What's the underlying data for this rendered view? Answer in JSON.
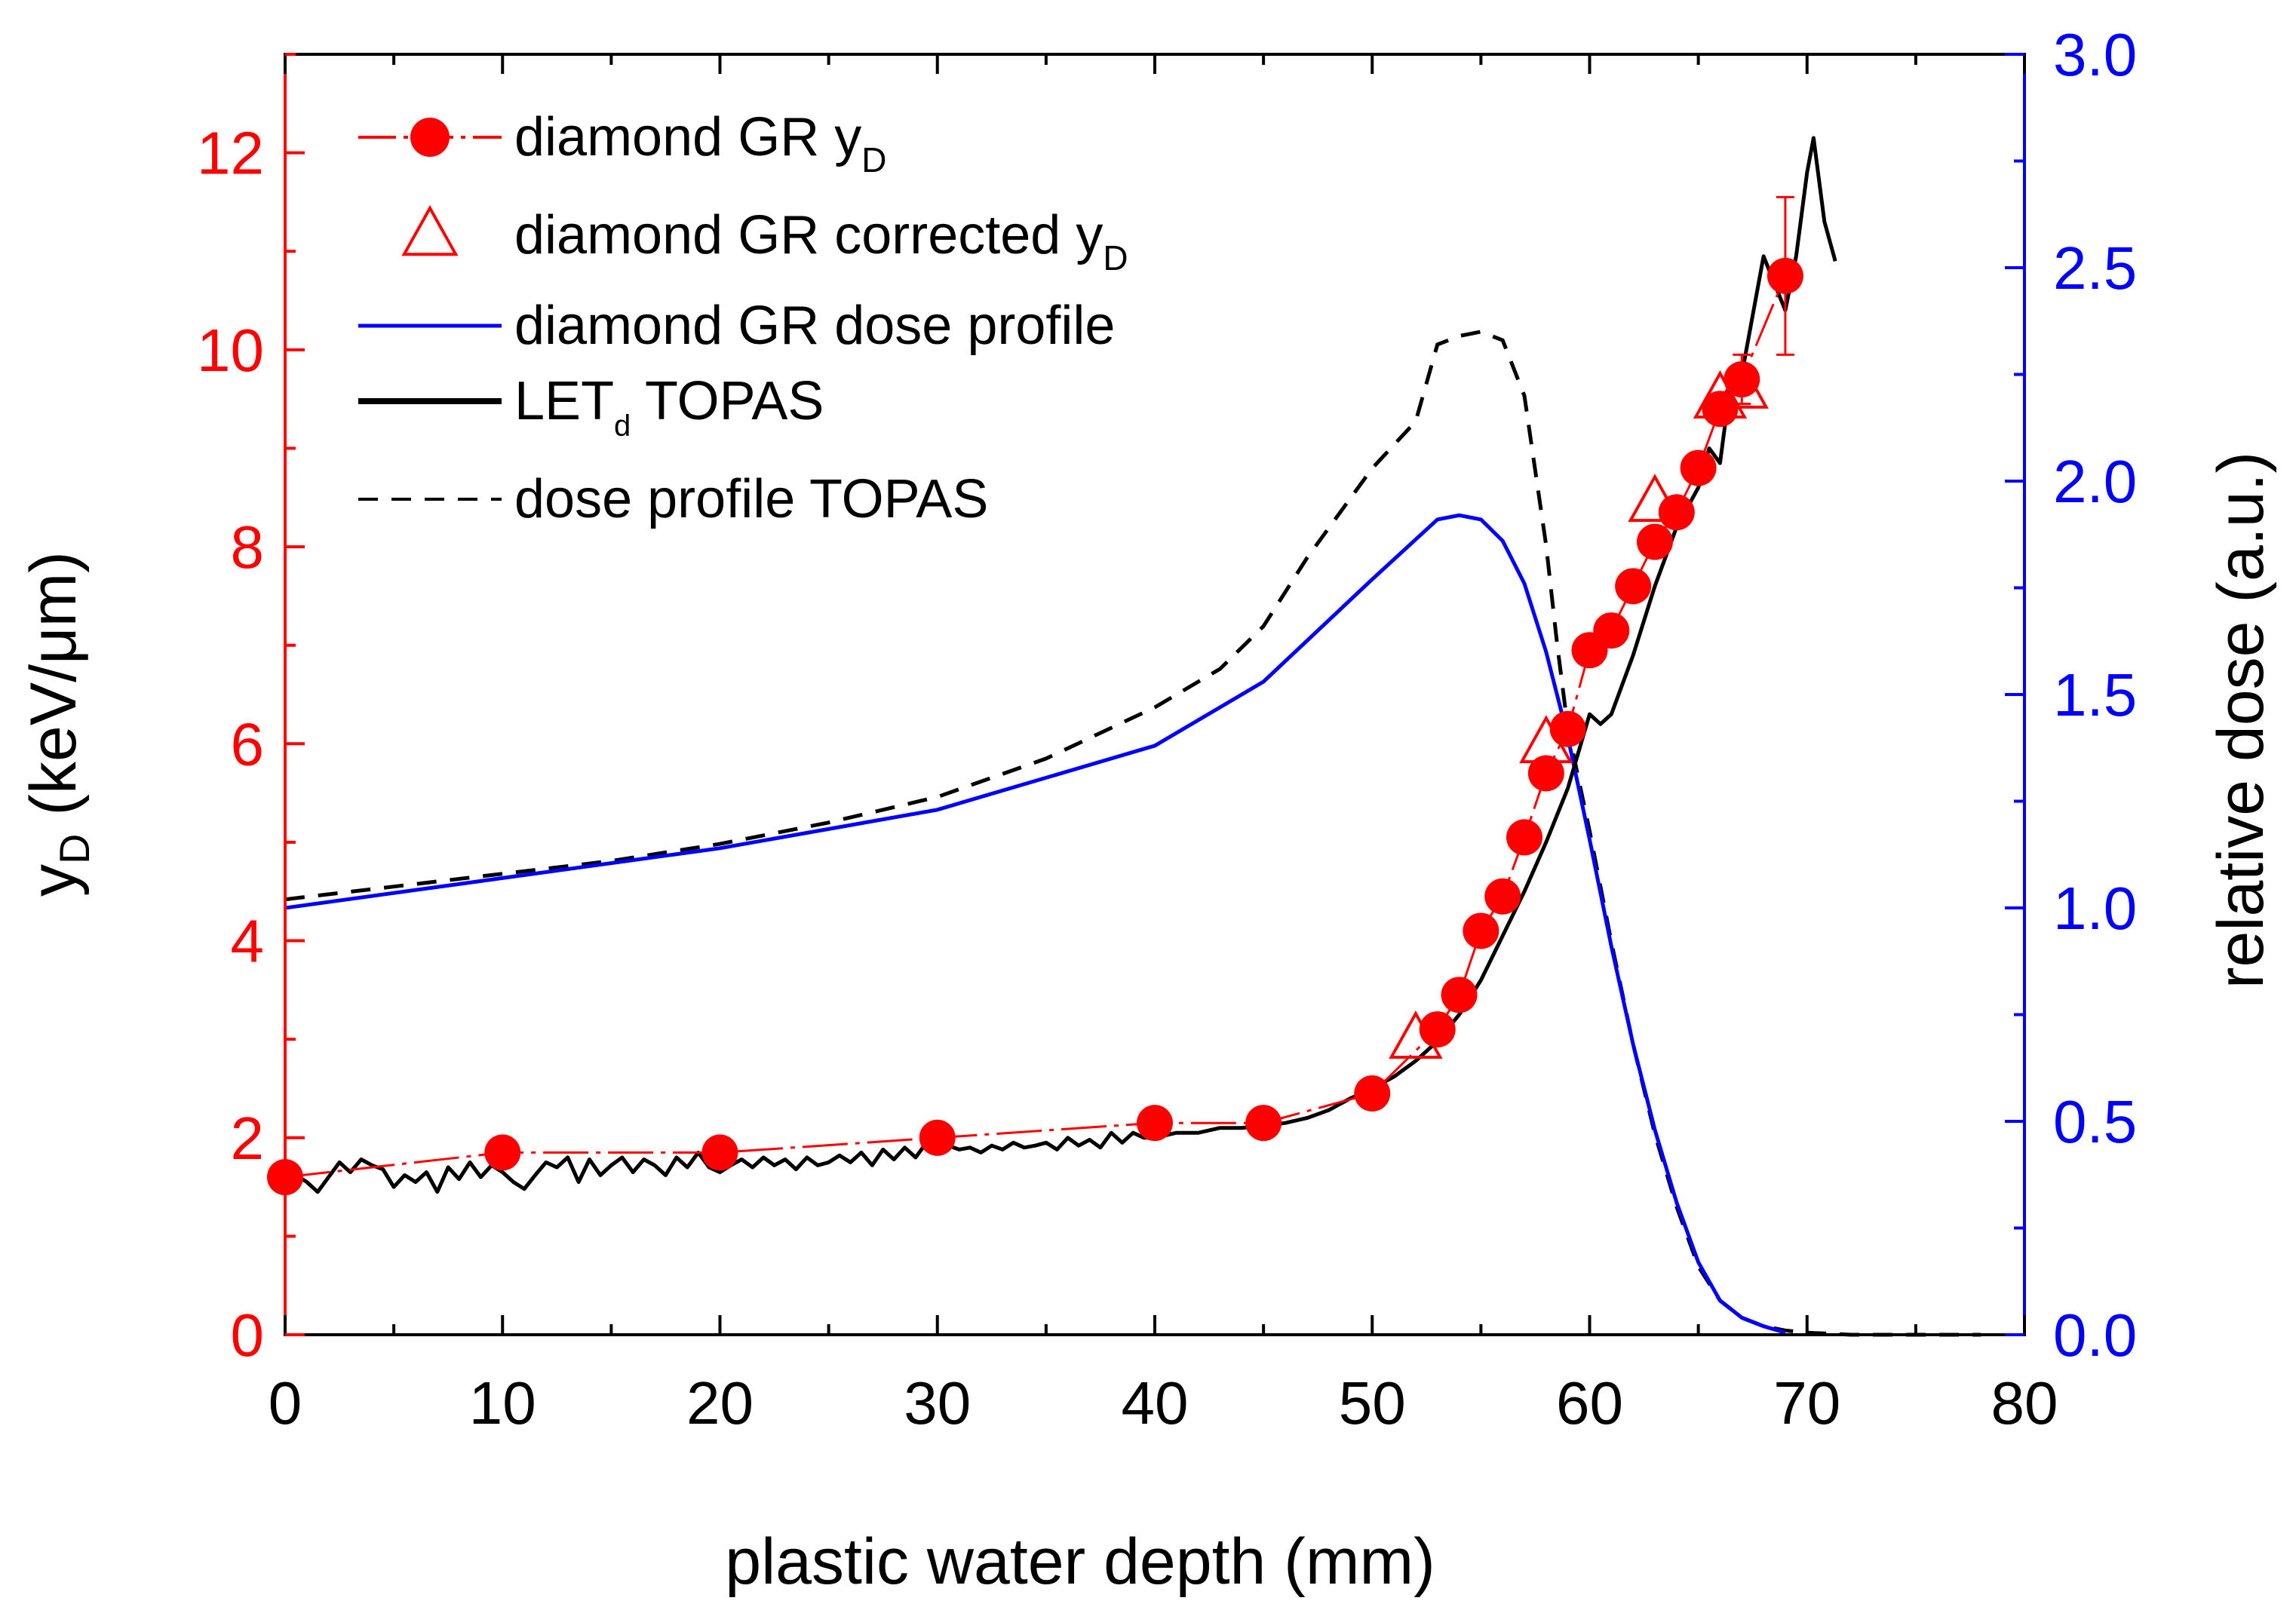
{
  "chart_data": {
    "type": "line",
    "x_axis": {
      "label": "plastic water depth (mm)",
      "range": [
        0,
        80
      ],
      "ticks": [
        0,
        10,
        20,
        30,
        40,
        50,
        60,
        70,
        80
      ]
    },
    "y_left": {
      "label_main": "y",
      "label_sub": "D",
      "label_rest": " (keV/μm)",
      "range": [
        0,
        13
      ],
      "ticks": [
        0,
        2,
        4,
        6,
        8,
        10,
        12
      ],
      "color": "#ff0000"
    },
    "y_right": {
      "label": "relative dose (a.u.)",
      "range": [
        0,
        3.0
      ],
      "ticks": [
        "0.0",
        "0.5",
        "1.0",
        "1.5",
        "2.0",
        "2.5",
        "3.0"
      ],
      "color": "#0000ff"
    },
    "legend": [
      {
        "key": "diamond",
        "pre": "diamond GR y",
        "sub": "D",
        "post": ""
      },
      {
        "key": "corrected",
        "pre": "diamond GR corrected y",
        "sub": "D",
        "post": ""
      },
      {
        "key": "doseprofile",
        "pre": "diamond GR dose profile",
        "sub": "",
        "post": ""
      },
      {
        "key": "let",
        "pre": "LET",
        "sub": "d",
        "post": " TOPAS"
      },
      {
        "key": "topasdose",
        "pre": "dose profile TOPAS",
        "sub": "",
        "post": ""
      }
    ],
    "series": {
      "diamond_yD": {
        "name": "diamond GR yD",
        "axis": "left",
        "color": "#ff0000",
        "x": [
          0,
          10,
          20,
          30,
          40,
          45,
          50,
          53,
          54,
          55,
          56,
          57,
          58,
          59,
          60,
          61,
          62,
          63,
          64,
          65,
          66,
          67,
          69
        ],
        "y": [
          1.6,
          1.85,
          1.85,
          2.0,
          2.15,
          2.15,
          2.45,
          3.1,
          3.45,
          4.1,
          4.45,
          5.05,
          5.7,
          6.15,
          6.95,
          7.15,
          7.6,
          8.05,
          8.35,
          8.8,
          9.4,
          9.7,
          10.75
        ],
        "error_x": [
          69,
          67
        ],
        "error_hi": [
          11.55,
          9.95
        ],
        "error_lo": [
          9.95,
          9.45
        ]
      },
      "diamond_corrected_yD": {
        "name": "diamond GR corrected yD",
        "axis": "left",
        "color": "#ff0000",
        "x": [
          52,
          58,
          63,
          66,
          67
        ],
        "y": [
          3.0,
          6.0,
          8.45,
          9.5,
          9.6
        ]
      },
      "diamond_dose_profile": {
        "name": "diamond GR dose profile",
        "axis": "right",
        "color": "#0000ff",
        "x": [
          0,
          10,
          20,
          30,
          40,
          45,
          50,
          53,
          54,
          55,
          56,
          57,
          58,
          59,
          60,
          61,
          62,
          63,
          64,
          65,
          66,
          67,
          68,
          69
        ],
        "y": [
          1.0,
          1.07,
          1.14,
          1.23,
          1.38,
          1.53,
          1.77,
          1.91,
          1.92,
          1.91,
          1.86,
          1.76,
          1.6,
          1.4,
          1.16,
          0.91,
          0.68,
          0.48,
          0.31,
          0.17,
          0.08,
          0.04,
          0.02,
          0.005
        ]
      },
      "let_d_topas": {
        "name": "LETd TOPAS",
        "axis": "left",
        "color": "#000000",
        "x": [
          0,
          0.5,
          1,
          1.5,
          2,
          2.5,
          3,
          3.5,
          4,
          4.5,
          5,
          5.5,
          6,
          6.5,
          7,
          7.5,
          8,
          8.5,
          9,
          9.5,
          10,
          10.5,
          11,
          11.5,
          12,
          12.5,
          13,
          13.5,
          14,
          14.5,
          15,
          15.5,
          16,
          16.5,
          17,
          17.5,
          18,
          18.5,
          19,
          19.5,
          20,
          20.5,
          21,
          21.5,
          22,
          22.5,
          23,
          23.5,
          24,
          24.5,
          25,
          25.5,
          26,
          26.5,
          27,
          27.5,
          28,
          28.5,
          29,
          29.5,
          30,
          30.5,
          31,
          31.5,
          32,
          32.5,
          33,
          33.5,
          34,
          34.5,
          35,
          35.5,
          36,
          36.5,
          37,
          37.5,
          38,
          38.5,
          39,
          39.5,
          40,
          41,
          42,
          43,
          44,
          45,
          46,
          47,
          48,
          49,
          50,
          51,
          52,
          53,
          54,
          55,
          56,
          57,
          58,
          59,
          60,
          60.5,
          61,
          62,
          63,
          64,
          65,
          65.5,
          66,
          66.5,
          67,
          68,
          69,
          69.5,
          70,
          70.3,
          70.8,
          71.3
        ],
        "y": [
          1.55,
          1.62,
          1.55,
          1.45,
          1.6,
          1.75,
          1.65,
          1.78,
          1.72,
          1.68,
          1.5,
          1.62,
          1.55,
          1.65,
          1.45,
          1.7,
          1.58,
          1.75,
          1.6,
          1.72,
          1.65,
          1.55,
          1.48,
          1.62,
          1.75,
          1.7,
          1.8,
          1.55,
          1.78,
          1.62,
          1.72,
          1.8,
          1.65,
          1.78,
          1.72,
          1.62,
          1.8,
          1.7,
          1.85,
          1.7,
          1.65,
          1.72,
          1.78,
          1.7,
          1.8,
          1.72,
          1.78,
          1.68,
          1.8,
          1.72,
          1.75,
          1.82,
          1.75,
          1.85,
          1.72,
          1.88,
          1.78,
          1.9,
          1.8,
          1.95,
          1.85,
          1.92,
          1.88,
          1.9,
          1.85,
          1.92,
          1.88,
          1.95,
          1.9,
          1.92,
          1.95,
          1.88,
          2.0,
          1.92,
          1.98,
          1.9,
          2.05,
          1.95,
          2.05,
          2.0,
          2.0,
          2.05,
          2.05,
          2.1,
          2.1,
          2.12,
          2.15,
          2.2,
          2.28,
          2.4,
          2.5,
          2.62,
          2.78,
          2.98,
          3.25,
          3.6,
          4.05,
          4.5,
          5.0,
          5.55,
          6.3,
          6.2,
          6.3,
          6.9,
          7.6,
          8.2,
          8.6,
          9.0,
          8.85,
          9.7,
          9.75,
          10.95,
          10.4,
          10.95,
          11.8,
          12.15,
          11.3,
          10.9
        ]
      },
      "dose_profile_topas": {
        "name": "dose profile TOPAS",
        "axis": "right",
        "color": "#000000",
        "x": [
          0,
          5,
          10,
          15,
          20,
          25,
          30,
          35,
          40,
          43,
          45,
          47,
          50,
          52,
          53,
          54,
          55,
          56,
          57,
          58,
          58.5,
          59,
          60,
          61,
          62,
          63,
          64,
          65,
          66,
          67,
          68,
          69,
          70,
          72,
          74,
          76,
          78
        ],
        "y": [
          1.02,
          1.05,
          1.08,
          1.11,
          1.15,
          1.2,
          1.26,
          1.35,
          1.47,
          1.56,
          1.66,
          1.82,
          2.03,
          2.14,
          2.32,
          2.34,
          2.35,
          2.33,
          2.2,
          1.85,
          1.62,
          1.42,
          1.18,
          0.92,
          0.68,
          0.47,
          0.3,
          0.16,
          0.08,
          0.04,
          0.02,
          0.01,
          0.005,
          0.0,
          0.0,
          0.0,
          0.0
        ]
      }
    }
  }
}
